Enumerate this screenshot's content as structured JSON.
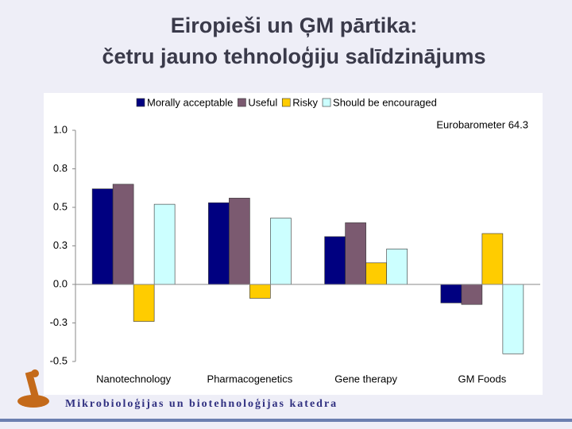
{
  "slide": {
    "title_lines": [
      "Eiropieši un ĢM pārtika:",
      "četru  jauno tehnoloģiju salīdzinājums"
    ],
    "footer": "Mikrobioloģijas un biotehnoloģijas katedra"
  },
  "chart_data": {
    "type": "bar",
    "annotation": "Eurobarometer 64.3",
    "categories": [
      "Nanotechnology",
      "Pharmacogenetics",
      "Gene therapy",
      "GM Foods"
    ],
    "series": [
      {
        "name": "Morally acceptable",
        "color": "#000080",
        "values": [
          0.62,
          0.53,
          0.31,
          -0.12
        ]
      },
      {
        "name": "Useful",
        "color": "#7b5a70",
        "values": [
          0.65,
          0.56,
          0.4,
          -0.13
        ]
      },
      {
        "name": "Risky",
        "color": "#ffcc00",
        "values": [
          -0.24,
          -0.09,
          0.14,
          0.33
        ]
      },
      {
        "name": "Should be encouraged",
        "color": "#ccffff",
        "values": [
          0.52,
          0.43,
          0.23,
          -0.45
        ]
      }
    ],
    "ylim": [
      -0.5,
      1.0
    ],
    "yticks": [
      {
        "value": 1,
        "label": "1.0"
      },
      {
        "value": 0.75,
        "label": "0.8"
      },
      {
        "value": 0.5,
        "label": "0.5"
      },
      {
        "value": 0.25,
        "label": "0.3"
      },
      {
        "value": 0,
        "label": "0.0"
      },
      {
        "value": -0.25,
        "label": "-0.3"
      },
      -0.5
    ],
    "grid": false
  }
}
